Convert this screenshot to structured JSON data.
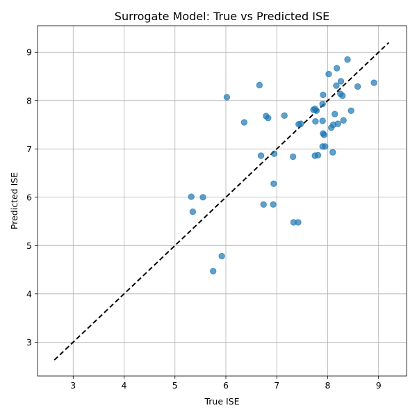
{
  "chart_data": {
    "type": "scatter",
    "title": "Surrogate Model: True vs Predicted ISE",
    "xlabel": "True ISE",
    "ylabel": "Predicted ISE",
    "xlim": [
      2.3,
      9.55
    ],
    "ylim": [
      2.3,
      9.55
    ],
    "xticks": [
      3,
      4,
      5,
      6,
      7,
      8,
      9
    ],
    "yticks": [
      3,
      4,
      5,
      6,
      7,
      8,
      9
    ],
    "grid": true,
    "series": [
      {
        "color": "#1f77b4",
        "points": [
          [
            8.39,
            8.85
          ],
          [
            8.18,
            8.67
          ],
          [
            8.02,
            8.55
          ],
          [
            8.26,
            8.4
          ],
          [
            8.17,
            8.31
          ],
          [
            8.59,
            8.29
          ],
          [
            8.91,
            8.37
          ],
          [
            6.66,
            8.32
          ],
          [
            7.91,
            8.12
          ],
          [
            8.25,
            8.14
          ],
          [
            8.29,
            8.1
          ],
          [
            6.02,
            8.07
          ],
          [
            7.9,
            7.93
          ],
          [
            7.75,
            7.83
          ],
          [
            7.78,
            7.79
          ],
          [
            7.72,
            7.81
          ],
          [
            8.46,
            7.79
          ],
          [
            8.14,
            7.72
          ],
          [
            7.15,
            7.69
          ],
          [
            6.79,
            7.68
          ],
          [
            6.83,
            7.64
          ],
          [
            7.9,
            7.58
          ],
          [
            8.31,
            7.59
          ],
          [
            7.76,
            7.57
          ],
          [
            6.36,
            7.55
          ],
          [
            8.2,
            7.52
          ],
          [
            8.11,
            7.5
          ],
          [
            7.43,
            7.51
          ],
          [
            7.47,
            7.52
          ],
          [
            8.07,
            7.44
          ],
          [
            7.91,
            7.32
          ],
          [
            7.93,
            7.29
          ],
          [
            7.9,
            7.05
          ],
          [
            7.95,
            7.05
          ],
          [
            8.1,
            6.93
          ],
          [
            6.95,
            6.9
          ],
          [
            6.69,
            6.86
          ],
          [
            7.32,
            6.84
          ],
          [
            7.75,
            6.86
          ],
          [
            7.81,
            6.87
          ],
          [
            6.94,
            6.28
          ],
          [
            5.32,
            6.01
          ],
          [
            5.55,
            6.0
          ],
          [
            5.35,
            5.7
          ],
          [
            6.74,
            5.85
          ],
          [
            6.93,
            5.85
          ],
          [
            7.33,
            5.48
          ],
          [
            7.42,
            5.48
          ],
          [
            5.92,
            4.78
          ],
          [
            5.75,
            4.47
          ]
        ]
      }
    ],
    "reference_line": {
      "style": "black dashed",
      "from": [
        2.63,
        2.63
      ],
      "to": [
        9.2,
        9.2
      ]
    }
  }
}
